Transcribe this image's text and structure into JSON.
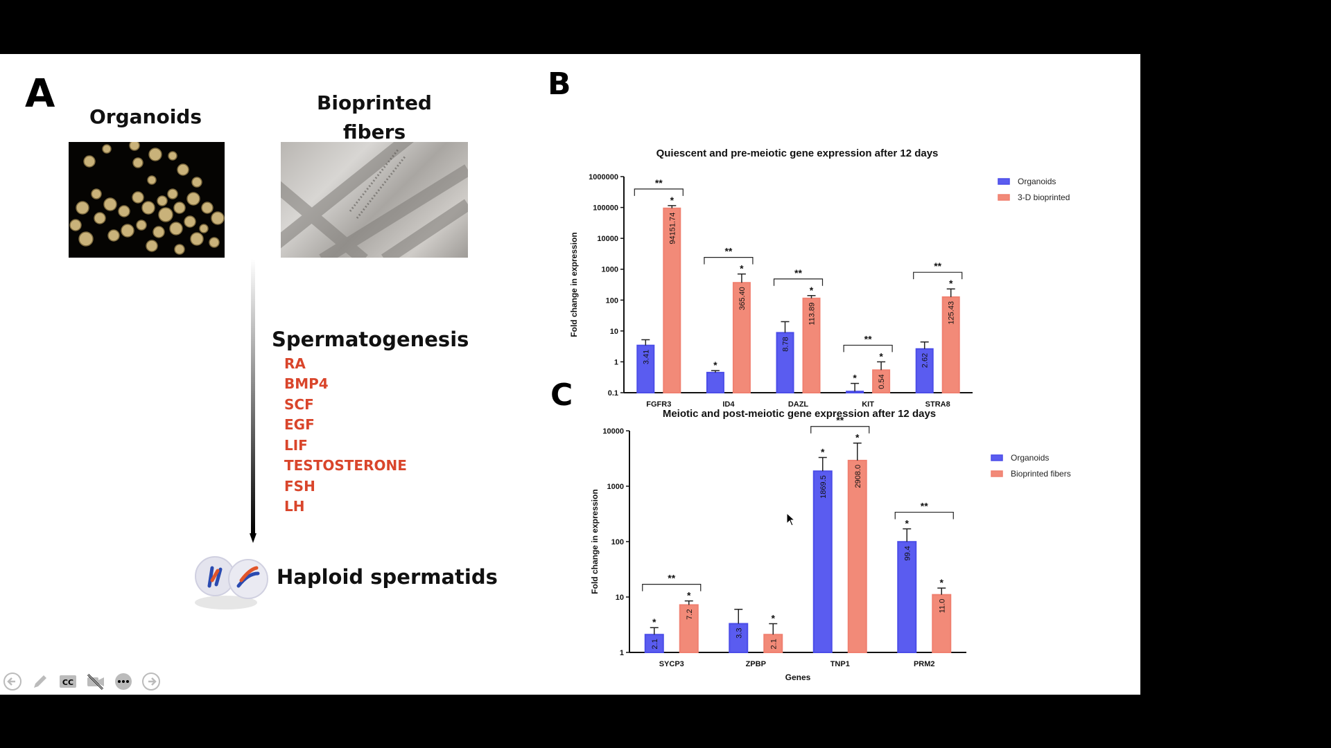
{
  "panel_a": {
    "letter": "A",
    "organoids_title": "Organoids",
    "fibers_title": "Bioprinted fibers",
    "process_label": "Spermatogenesis",
    "factors": [
      "RA",
      "BMP4",
      "SCF",
      "EGF",
      "LIF",
      "TESTOSTERONE",
      "FSH",
      "LH"
    ],
    "result_label": "Haploid spermatids",
    "factor_color": "#d9452b"
  },
  "panel_b": {
    "letter": "B"
  },
  "panel_c": {
    "letter": "C"
  },
  "colors": {
    "organoids": "#4b4de8",
    "bioprinted": "#f08070",
    "organoids_fill_b": "#5a5cf0",
    "bioprinted_fill_b": "#f28a78"
  },
  "toolbar": {
    "icons": [
      "back-arrow-icon",
      "pen-icon",
      "closed-caption-icon",
      "camera-off-icon",
      "more-icon",
      "forward-arrow-icon"
    ]
  },
  "chart_data": [
    {
      "type": "bar",
      "title": "Quiescent and pre-meiotic gene expression after 12 days",
      "xlabel": "",
      "ylabel": "Fold change in expression",
      "yscale": "log",
      "ylim": [
        0.1,
        1000000
      ],
      "yticks": [
        "0.1",
        "1",
        "10",
        "100",
        "1000",
        "10000",
        "100000",
        "1000000"
      ],
      "categories": [
        "FGFR3",
        "ID4",
        "DAZL",
        "KIT",
        "STRA8"
      ],
      "series": [
        {
          "name": "Organoids",
          "values": [
            3.41,
            0.45,
            8.78,
            0.11,
            2.62
          ],
          "error_upper": [
            5.2,
            0.52,
            20,
            0.2,
            4.4
          ],
          "labels": [
            "3.41",
            "",
            "8.78",
            "",
            "2.62"
          ],
          "stars": [
            "",
            "*",
            "",
            "*",
            ""
          ]
        },
        {
          "name": "3-D bioprinted",
          "values": [
            94151.74,
            365.4,
            113.89,
            0.54,
            125.43
          ],
          "error_upper": [
            115000,
            700,
            140,
            1.0,
            230
          ],
          "labels": [
            "94151.74",
            "365.40",
            "113.89",
            "0.54",
            "125.43"
          ],
          "stars": [
            "*",
            "*",
            "*",
            "*",
            "*"
          ]
        }
      ],
      "brackets": [
        "**",
        "**",
        "**",
        "**",
        "**"
      ],
      "legend_position": "top-right",
      "grid": false
    },
    {
      "type": "bar",
      "title": "Meiotic and post-meiotic gene expression after 12 days",
      "xlabel": "Genes",
      "ylabel": "Fold change in expression",
      "yscale": "log",
      "ylim": [
        1,
        10000
      ],
      "yticks": [
        "1",
        "10",
        "100",
        "1000",
        "10000"
      ],
      "categories": [
        "SYCP3",
        "ZPBP",
        "TNP1",
        "PRM2"
      ],
      "series": [
        {
          "name": "Organoids",
          "values": [
            2.1,
            3.3,
            1869.5,
            99.4
          ],
          "error_upper": [
            2.8,
            6.0,
            3300,
            170
          ],
          "labels": [
            "2.1",
            "3.3",
            "1869.5",
            "99.4"
          ],
          "stars": [
            "*",
            "",
            "*",
            "*"
          ]
        },
        {
          "name": "Bioprinted fibers",
          "values": [
            7.2,
            2.1,
            2908.0,
            11.0
          ],
          "error_upper": [
            8.5,
            3.3,
            6000,
            14.5
          ],
          "labels": [
            "7.2",
            "2.1",
            "2908.0",
            "11.0"
          ],
          "stars": [
            "*",
            "*",
            "*",
            "*"
          ]
        }
      ],
      "brackets": [
        "**",
        "",
        "**",
        "**"
      ],
      "legend_position": "top-right",
      "grid": false
    }
  ]
}
